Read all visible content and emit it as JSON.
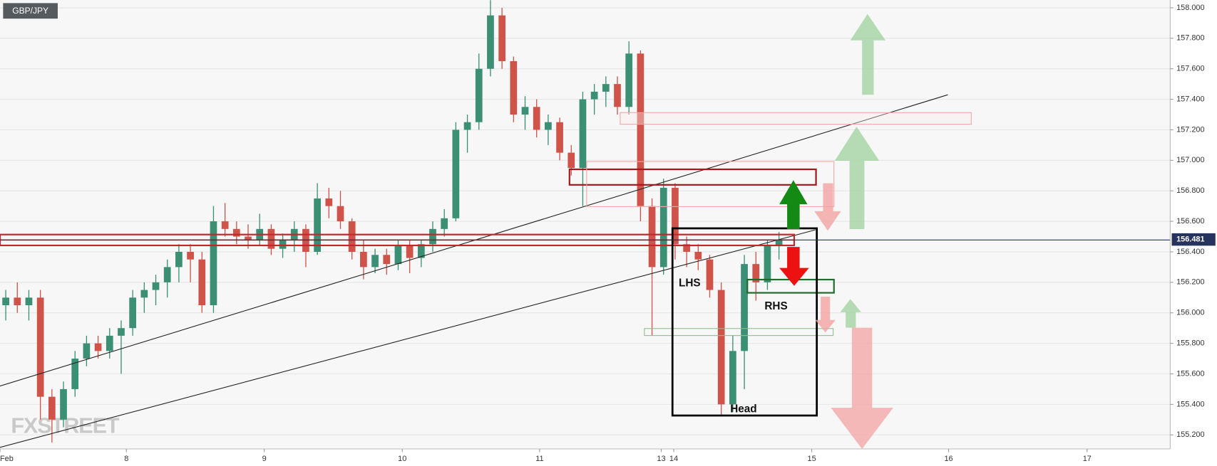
{
  "chart_data": {
    "type": "candlestick",
    "title": "GBP/JPY",
    "watermark": "FXSTREET",
    "annotations": [
      "LHS",
      "RHS",
      "Head"
    ],
    "up_color": "#3a8f74",
    "down_color": "#d0534a",
    "grid": true,
    "xlim": [
      0,
      101.4
    ],
    "ylim": [
      155.108,
      158.051
    ],
    "xticks": [
      {
        "value": 0,
        "label": "Feb"
      },
      {
        "value": 10.95,
        "label": "8"
      },
      {
        "value": 22.9,
        "label": "9"
      },
      {
        "value": 34.86,
        "label": "10"
      },
      {
        "value": 46.76,
        "label": "11"
      },
      {
        "value": 57.3,
        "label": "13"
      },
      {
        "value": 58.38,
        "label": "14"
      },
      {
        "value": 70.34,
        "label": "15"
      },
      {
        "value": 82.2,
        "label": "16"
      },
      {
        "value": 94.2,
        "label": "17"
      }
    ],
    "yticks": [
      {
        "value": 155.2,
        "label": "155.200"
      },
      {
        "value": 155.4,
        "label": "155.400"
      },
      {
        "value": 155.6,
        "label": "155.600"
      },
      {
        "value": 155.8,
        "label": "155.800"
      },
      {
        "value": 156.0,
        "label": "156.000"
      },
      {
        "value": 156.2,
        "label": "156.200"
      },
      {
        "value": 156.4,
        "label": "156.400"
      },
      {
        "value": 156.6,
        "label": "156.600"
      },
      {
        "value": 156.8,
        "label": "156.800"
      },
      {
        "value": 157.0,
        "label": "157.000"
      },
      {
        "value": 157.2,
        "label": "157.200"
      },
      {
        "value": 157.4,
        "label": "157.400"
      },
      {
        "value": 157.6,
        "label": "157.600"
      },
      {
        "value": 157.8,
        "label": "157.800"
      },
      {
        "value": 158.0,
        "label": "158.000"
      }
    ],
    "last_price": {
      "value": 156.481,
      "label": "156.481"
    },
    "x": [
      0.5,
      1.5,
      2.5,
      3.5,
      4.5,
      5.5,
      6.5,
      7.5,
      8.5,
      9.5,
      10.5,
      11.5,
      12.5,
      13.5,
      14.5,
      15.5,
      16.5,
      17.5,
      18.5,
      19.5,
      20.5,
      21.5,
      22.5,
      23.5,
      24.5,
      25.5,
      26.5,
      27.5,
      28.5,
      29.5,
      30.5,
      31.5,
      32.5,
      33.5,
      34.5,
      35.5,
      36.5,
      37.5,
      38.5,
      39.5,
      40.5,
      41.5,
      42.5,
      43.5,
      44.5,
      45.5,
      46.5,
      47.5,
      48.5,
      49.5,
      50.5,
      51.5,
      52.5,
      53.5,
      54.5,
      55.5,
      56.5,
      57.5,
      58.5,
      59.5,
      60.5,
      61.5,
      62.5,
      63.5,
      64.5,
      65.5,
      66.5,
      67.5
    ],
    "open": [
      156.05,
      156.1,
      156.05,
      156.1,
      155.45,
      155.3,
      155.5,
      155.7,
      155.8,
      155.75,
      155.85,
      155.9,
      156.1,
      156.15,
      156.2,
      156.3,
      156.4,
      156.35,
      156.05,
      156.6,
      156.55,
      156.5,
      156.48,
      156.55,
      156.42,
      156.48,
      156.55,
      156.4,
      156.75,
      156.7,
      156.6,
      156.4,
      156.3,
      156.38,
      156.32,
      156.44,
      156.36,
      156.45,
      156.55,
      156.62,
      157.2,
      157.25,
      157.6,
      157.95,
      157.65,
      157.3,
      157.35,
      157.2,
      157.25,
      157.05,
      156.95,
      157.4,
      157.45,
      157.5,
      157.35,
      157.7,
      156.7,
      156.3,
      156.82,
      156.45,
      156.4,
      156.35,
      156.15,
      155.4,
      155.75,
      156.32,
      156.2,
      156.44
    ],
    "high": [
      156.15,
      156.2,
      156.15,
      156.15,
      155.5,
      155.55,
      155.75,
      155.85,
      155.85,
      155.9,
      155.95,
      156.15,
      156.2,
      156.25,
      156.35,
      156.45,
      156.45,
      156.4,
      156.7,
      156.72,
      156.6,
      156.58,
      156.65,
      156.58,
      156.52,
      156.6,
      156.58,
      156.85,
      156.82,
      156.8,
      156.62,
      156.48,
      156.42,
      156.42,
      156.48,
      156.48,
      156.48,
      156.6,
      156.68,
      157.25,
      157.3,
      157.7,
      158.05,
      158.0,
      157.68,
      157.42,
      157.4,
      157.3,
      157.28,
      157.1,
      157.45,
      157.5,
      157.55,
      157.55,
      157.78,
      157.72,
      156.75,
      156.88,
      156.85,
      156.5,
      156.45,
      156.38,
      156.2,
      155.85,
      156.38,
      156.4,
      156.48,
      156.53
    ],
    "low": [
      155.95,
      156.0,
      155.95,
      155.3,
      155.15,
      155.25,
      155.45,
      155.65,
      155.7,
      155.7,
      155.6,
      155.85,
      156.0,
      156.05,
      156.1,
      156.2,
      156.2,
      156.0,
      156.0,
      156.5,
      156.45,
      156.42,
      156.44,
      156.38,
      156.36,
      156.4,
      156.3,
      156.38,
      156.62,
      156.55,
      156.35,
      156.22,
      156.26,
      156.25,
      156.28,
      156.26,
      156.3,
      156.4,
      156.5,
      156.6,
      157.05,
      157.2,
      157.55,
      157.6,
      157.25,
      157.2,
      157.15,
      157.1,
      157.0,
      156.9,
      156.7,
      157.3,
      157.35,
      157.3,
      157.3,
      156.6,
      155.85,
      156.25,
      156.35,
      156.3,
      156.28,
      156.1,
      155.32,
      155.35,
      155.5,
      156.08,
      156.15,
      156.35
    ],
    "close": [
      156.1,
      156.05,
      156.1,
      155.45,
      155.3,
      155.5,
      155.7,
      155.8,
      155.75,
      155.85,
      155.9,
      156.1,
      156.15,
      156.2,
      156.3,
      156.4,
      156.35,
      156.05,
      156.6,
      156.55,
      156.5,
      156.48,
      156.55,
      156.42,
      156.48,
      156.55,
      156.4,
      156.75,
      156.7,
      156.6,
      156.4,
      156.3,
      156.38,
      156.32,
      156.44,
      156.36,
      156.45,
      156.55,
      156.62,
      157.2,
      157.25,
      157.6,
      157.95,
      157.65,
      157.3,
      157.35,
      157.2,
      157.25,
      157.05,
      156.95,
      157.4,
      157.45,
      157.5,
      157.35,
      157.7,
      156.7,
      156.3,
      156.82,
      156.45,
      156.4,
      156.35,
      156.15,
      155.4,
      155.75,
      156.32,
      156.2,
      156.44,
      156.48
    ]
  }
}
